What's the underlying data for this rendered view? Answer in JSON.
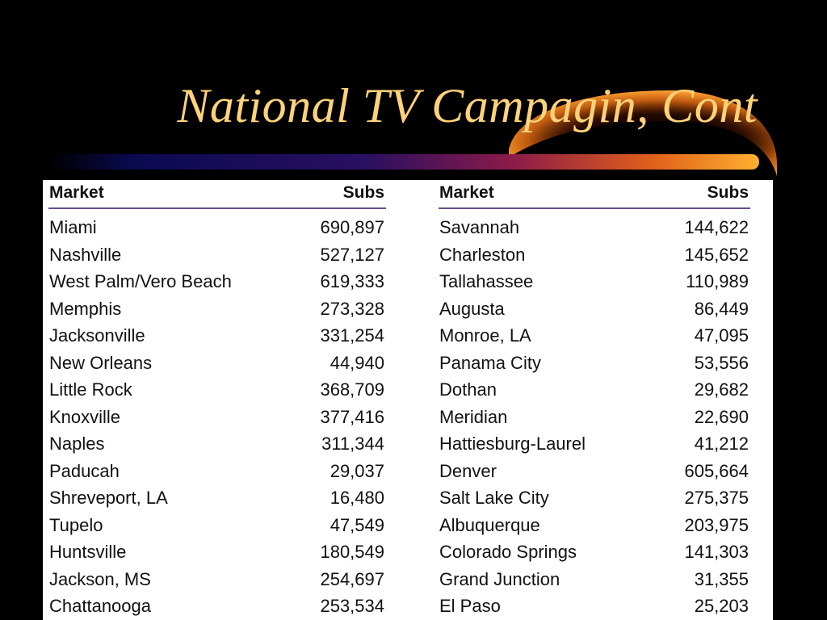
{
  "slide": {
    "title": "National TV Campagin, Cont"
  },
  "table": {
    "header": {
      "market": "Market",
      "subs": "Subs"
    },
    "left": [
      {
        "market": "Miami",
        "subs": "690,897"
      },
      {
        "market": "Nashville",
        "subs": "527,127"
      },
      {
        "market": "West Palm/Vero Beach",
        "subs": "619,333"
      },
      {
        "market": "Memphis",
        "subs": "273,328"
      },
      {
        "market": "Jacksonville",
        "subs": "331,254"
      },
      {
        "market": "New Orleans",
        "subs": "44,940"
      },
      {
        "market": "Little Rock",
        "subs": "368,709"
      },
      {
        "market": "Knoxville",
        "subs": "377,416"
      },
      {
        "market": "Naples",
        "subs": "311,344"
      },
      {
        "market": "Paducah",
        "subs": "29,037"
      },
      {
        "market": "Shreveport, LA",
        "subs": "16,480"
      },
      {
        "market": "Tupelo",
        "subs": "47,549"
      },
      {
        "market": "Huntsville",
        "subs": "180,549"
      },
      {
        "market": "Jackson, MS",
        "subs": "254,697"
      },
      {
        "market": "Chattanooga",
        "subs": "253,534"
      }
    ],
    "right": [
      {
        "market": "Savannah",
        "subs": "144,622"
      },
      {
        "market": "Charleston",
        "subs": "145,652"
      },
      {
        "market": "Tallahassee",
        "subs": "110,989"
      },
      {
        "market": "Augusta",
        "subs": "86,449"
      },
      {
        "market": "Monroe, LA",
        "subs": "47,095"
      },
      {
        "market": "Panama City",
        "subs": "53,556"
      },
      {
        "market": "Dothan",
        "subs": "29,682"
      },
      {
        "market": "Meridian",
        "subs": "22,690"
      },
      {
        "market": "Hattiesburg-Laurel",
        "subs": "41,212"
      },
      {
        "market": "Denver",
        "subs": "605,664"
      },
      {
        "market": "Salt Lake City",
        "subs": "275,375"
      },
      {
        "market": "Albuquerque",
        "subs": "203,975"
      },
      {
        "market": "Colorado Springs",
        "subs": "141,303"
      },
      {
        "market": "Grand Junction",
        "subs": "31,355"
      },
      {
        "market": "El Paso",
        "subs": "25,203"
      }
    ]
  },
  "colors": {
    "background": "#000000",
    "title": "#ffd27a",
    "header_rule": "#6b4d8f",
    "swoosh_start": "#0a0a4a",
    "swoosh_mid": "#7a1a5a",
    "swoosh_end": "#ff9a20"
  }
}
